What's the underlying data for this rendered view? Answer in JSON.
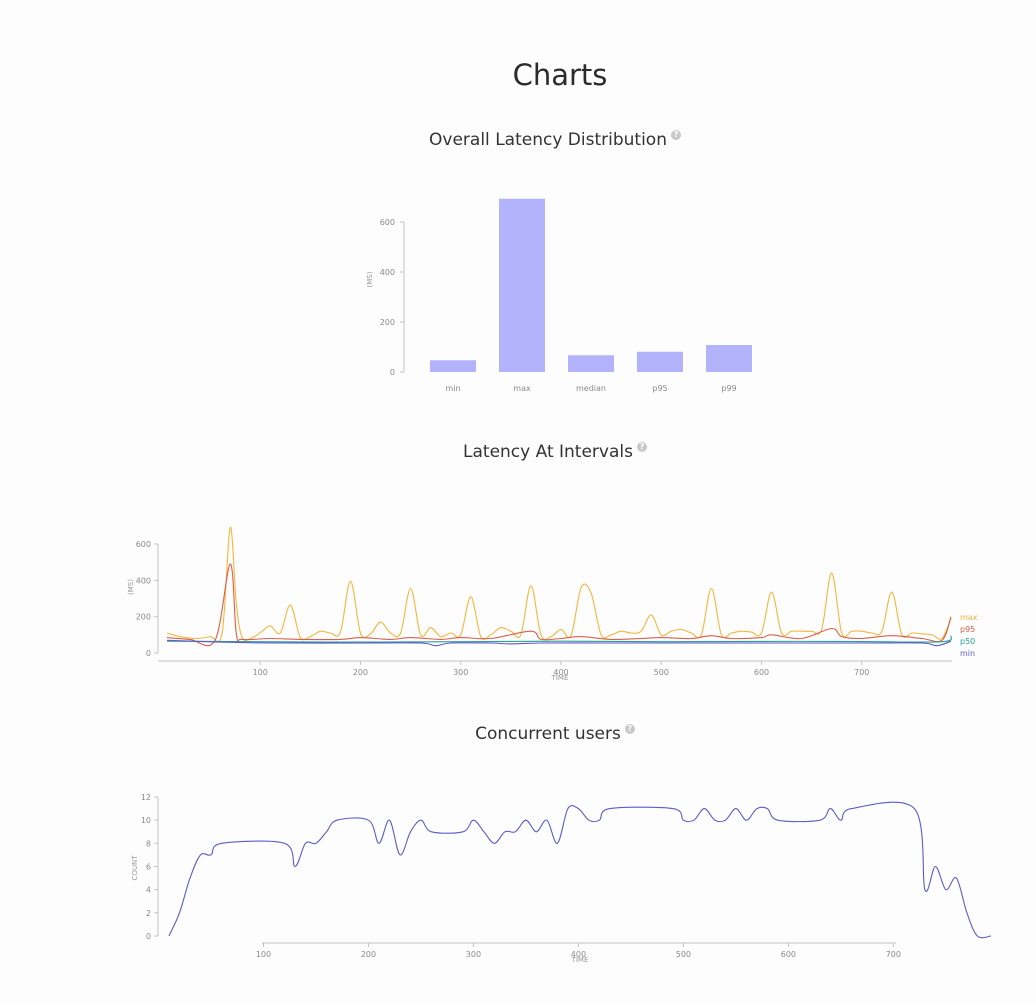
{
  "page": {
    "title": "Charts",
    "help_glyph": "?"
  },
  "sections": [
    {
      "title": "Overall Latency Distribution"
    },
    {
      "title": "Latency At Intervals"
    },
    {
      "title": "Concurrent users"
    }
  ],
  "chart_data": [
    {
      "type": "bar",
      "title": "Overall Latency Distribution",
      "categories": [
        "min",
        "max",
        "median",
        "p95",
        "p99"
      ],
      "values": [
        47,
        693,
        67,
        81,
        108
      ],
      "ylabel": "(MS)",
      "ylim": [
        0,
        700
      ],
      "yticks": [
        0,
        200,
        400,
        600
      ],
      "bar_color": "#b3b3fb",
      "grid": false
    },
    {
      "type": "line",
      "title": "Latency At Intervals",
      "xlabel": "TIME",
      "ylabel": "(MS)",
      "xlim": [
        7,
        789
      ],
      "ylim": [
        0,
        600
      ],
      "xticks": [
        100,
        200,
        300,
        400,
        500,
        600,
        700
      ],
      "yticks": [
        0,
        200,
        400,
        600
      ],
      "legend_position": "right",
      "grid": false,
      "series": [
        {
          "name": "max",
          "color": "#f5b63c",
          "points": [
            [
              7,
              110
            ],
            [
              20,
              90
            ],
            [
              35,
              80
            ],
            [
              50,
              90
            ],
            [
              62,
              110
            ],
            [
              70,
              690
            ],
            [
              76,
              280
            ],
            [
              82,
              85
            ],
            [
              92,
              85
            ],
            [
              102,
              120
            ],
            [
              110,
              150
            ],
            [
              120,
              110
            ],
            [
              130,
              265
            ],
            [
              140,
              85
            ],
            [
              150,
              90
            ],
            [
              160,
              120
            ],
            [
              170,
              110
            ],
            [
              180,
              115
            ],
            [
              190,
              395
            ],
            [
              200,
              110
            ],
            [
              210,
              105
            ],
            [
              220,
              170
            ],
            [
              230,
              110
            ],
            [
              240,
              110
            ],
            [
              250,
              355
            ],
            [
              260,
              100
            ],
            [
              270,
              140
            ],
            [
              280,
              90
            ],
            [
              290,
              110
            ],
            [
              300,
              100
            ],
            [
              310,
              310
            ],
            [
              320,
              90
            ],
            [
              330,
              100
            ],
            [
              340,
              140
            ],
            [
              350,
              120
            ],
            [
              360,
              100
            ],
            [
              370,
              370
            ],
            [
              380,
              100
            ],
            [
              390,
              90
            ],
            [
              400,
              130
            ],
            [
              410,
              95
            ],
            [
              420,
              360
            ],
            [
              430,
              330
            ],
            [
              440,
              100
            ],
            [
              450,
              100
            ],
            [
              460,
              120
            ],
            [
              470,
              110
            ],
            [
              480,
              120
            ],
            [
              490,
              210
            ],
            [
              500,
              100
            ],
            [
              510,
              120
            ],
            [
              520,
              130
            ],
            [
              530,
              110
            ],
            [
              540,
              100
            ],
            [
              550,
              355
            ],
            [
              560,
              100
            ],
            [
              570,
              110
            ],
            [
              580,
              120
            ],
            [
              590,
              115
            ],
            [
              600,
              110
            ],
            [
              610,
              335
            ],
            [
              620,
              110
            ],
            [
              630,
              120
            ],
            [
              640,
              120
            ],
            [
              650,
              120
            ],
            [
              660,
              130
            ],
            [
              670,
              440
            ],
            [
              680,
              110
            ],
            [
              690,
              120
            ],
            [
              700,
              120
            ],
            [
              710,
              110
            ],
            [
              720,
              120
            ],
            [
              730,
              335
            ],
            [
              740,
              100
            ],
            [
              750,
              110
            ],
            [
              760,
              105
            ],
            [
              770,
              100
            ],
            [
              780,
              80
            ],
            [
              789,
              190
            ]
          ]
        },
        {
          "name": "p95",
          "color": "#d95f4b",
          "points": [
            [
              7,
              85
            ],
            [
              30,
              75
            ],
            [
              55,
              70
            ],
            [
              70,
              490
            ],
            [
              76,
              110
            ],
            [
              82,
              75
            ],
            [
              110,
              80
            ],
            [
              140,
              75
            ],
            [
              180,
              75
            ],
            [
              200,
              85
            ],
            [
              230,
              75
            ],
            [
              250,
              85
            ],
            [
              280,
              75
            ],
            [
              300,
              85
            ],
            [
              330,
              80
            ],
            [
              370,
              120
            ],
            [
              380,
              75
            ],
            [
              400,
              80
            ],
            [
              420,
              90
            ],
            [
              450,
              75
            ],
            [
              480,
              80
            ],
            [
              500,
              85
            ],
            [
              530,
              80
            ],
            [
              550,
              95
            ],
            [
              570,
              80
            ],
            [
              600,
              85
            ],
            [
              610,
              100
            ],
            [
              640,
              80
            ],
            [
              670,
              135
            ],
            [
              680,
              90
            ],
            [
              700,
              80
            ],
            [
              730,
              95
            ],
            [
              760,
              80
            ],
            [
              780,
              70
            ],
            [
              789,
              200
            ]
          ]
        },
        {
          "name": "p50",
          "color": "#2aa198",
          "points": [
            [
              7,
              65
            ],
            [
              100,
              62
            ],
            [
              200,
              60
            ],
            [
              300,
              62
            ],
            [
              400,
              65
            ],
            [
              500,
              62
            ],
            [
              600,
              64
            ],
            [
              700,
              63
            ],
            [
              780,
              62
            ],
            [
              789,
              95
            ]
          ]
        },
        {
          "name": "min",
          "color": "#5c5ccc",
          "points": [
            [
              7,
              70
            ],
            [
              60,
              60
            ],
            [
              120,
              55
            ],
            [
              200,
              55
            ],
            [
              260,
              55
            ],
            [
              275,
              40
            ],
            [
              290,
              55
            ],
            [
              330,
              55
            ],
            [
              350,
              50
            ],
            [
              380,
              55
            ],
            [
              450,
              55
            ],
            [
              500,
              55
            ],
            [
              600,
              55
            ],
            [
              700,
              55
            ],
            [
              760,
              55
            ],
            [
              775,
              40
            ],
            [
              789,
              65
            ]
          ]
        }
      ]
    },
    {
      "type": "line",
      "title": "Concurrent users",
      "xlabel": "TIME",
      "ylabel": "COUNT",
      "xlim": [
        10,
        793
      ],
      "ylim": [
        0,
        12
      ],
      "xticks": [
        100,
        200,
        300,
        400,
        500,
        600,
        700
      ],
      "yticks": [
        0,
        2,
        4,
        6,
        8,
        10,
        12
      ],
      "grid": false,
      "series": [
        {
          "name": "",
          "color": "#5c5ccc",
          "points": [
            [
              10,
              0
            ],
            [
              20,
              2
            ],
            [
              30,
              5
            ],
            [
              40,
              7
            ],
            [
              50,
              7
            ],
            [
              60,
              8
            ],
            [
              120,
              8
            ],
            [
              130,
              6
            ],
            [
              140,
              8
            ],
            [
              150,
              8
            ],
            [
              160,
              9
            ],
            [
              170,
              10
            ],
            [
              200,
              10
            ],
            [
              210,
              8
            ],
            [
              220,
              10
            ],
            [
              230,
              7
            ],
            [
              240,
              9
            ],
            [
              250,
              10
            ],
            [
              260,
              9
            ],
            [
              290,
              9
            ],
            [
              300,
              10
            ],
            [
              310,
              9
            ],
            [
              320,
              8
            ],
            [
              330,
              9
            ],
            [
              340,
              9
            ],
            [
              350,
              10
            ],
            [
              360,
              9
            ],
            [
              370,
              10
            ],
            [
              380,
              8
            ],
            [
              390,
              11
            ],
            [
              400,
              11
            ],
            [
              410,
              10
            ],
            [
              420,
              10
            ],
            [
              430,
              11
            ],
            [
              490,
              11
            ],
            [
              500,
              10
            ],
            [
              510,
              10
            ],
            [
              520,
              11
            ],
            [
              530,
              10
            ],
            [
              540,
              10
            ],
            [
              550,
              11
            ],
            [
              560,
              10
            ],
            [
              570,
              11
            ],
            [
              580,
              11
            ],
            [
              590,
              10
            ],
            [
              630,
              10
            ],
            [
              640,
              11
            ],
            [
              650,
              10
            ],
            [
              660,
              11
            ],
            [
              720,
              11
            ],
            [
              730,
              4
            ],
            [
              740,
              6
            ],
            [
              750,
              4
            ],
            [
              760,
              5
            ],
            [
              770,
              2
            ],
            [
              780,
              0
            ],
            [
              793,
              0
            ]
          ]
        }
      ]
    }
  ]
}
